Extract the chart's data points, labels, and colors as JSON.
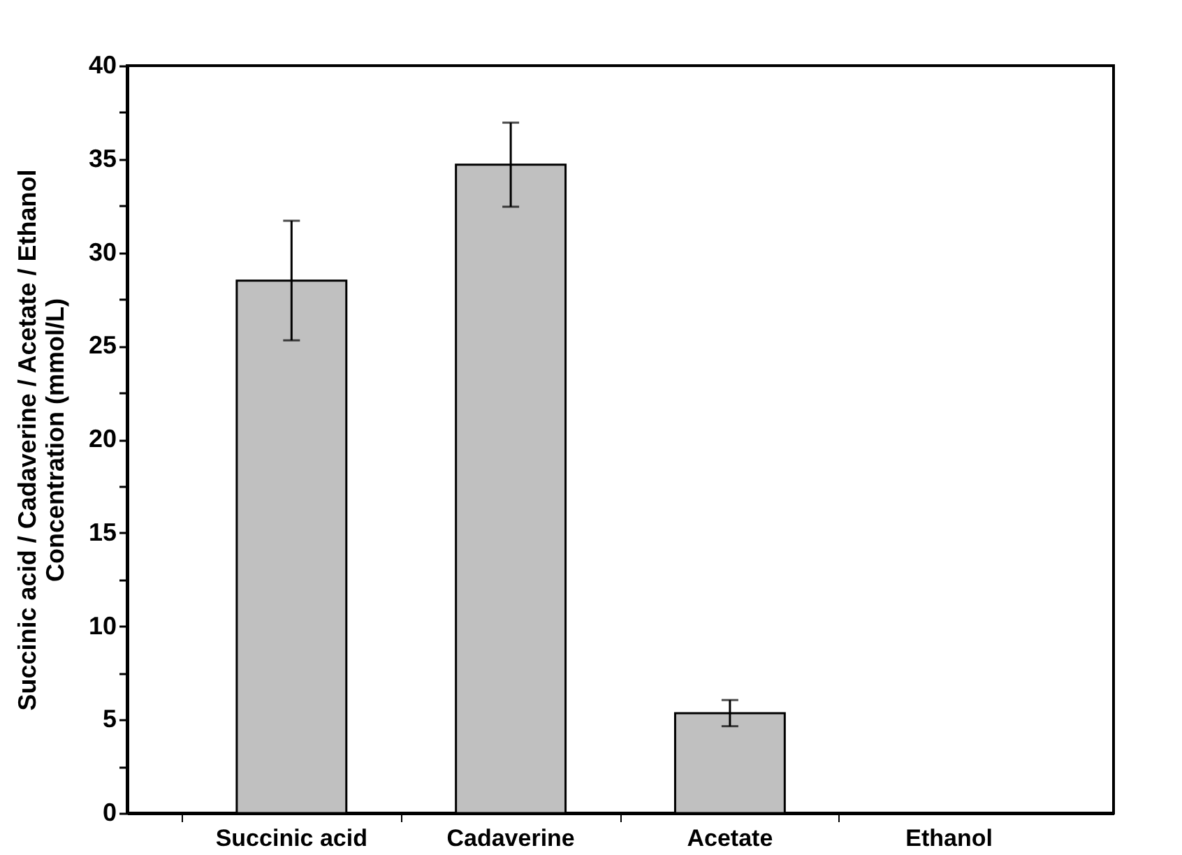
{
  "chart_data": {
    "type": "bar",
    "ylabel": "Succinic acid / Cadaverine / Acetate / Ethanol\nConcentration (mmol/L)",
    "categories": [
      "Succinic acid",
      "Cadaverine",
      "Acetate",
      "Ethanol"
    ],
    "values": [
      28.5,
      34.7,
      5.35,
      0
    ],
    "errors": [
      3.2,
      2.25,
      0.7,
      null
    ],
    "color": "#c0c0c0",
    "ylim": [
      0,
      40
    ],
    "yticks": [
      0,
      {
        "value": 2.5,
        "label": null
      },
      5,
      {
        "value": 7.5,
        "label": null
      },
      10,
      {
        "value": 12.5,
        "label": null
      },
      15,
      {
        "value": 17.5,
        "label": null
      },
      20,
      {
        "value": 22.5,
        "label": null
      },
      25,
      {
        "value": 27.5,
        "label": null
      },
      30,
      {
        "value": 32.5,
        "label": null
      },
      35,
      {
        "value": 37.5,
        "label": null
      },
      40
    ],
    "grid": false
  }
}
